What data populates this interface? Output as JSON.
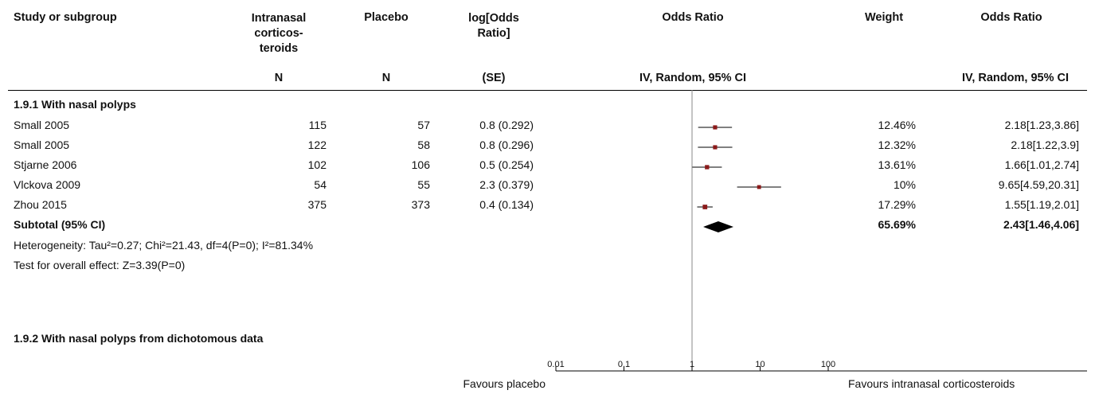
{
  "headers": {
    "study": "Study or subgroup",
    "exp": [
      "Intranasal",
      "corticos-",
      "teroids"
    ],
    "ctrl": "Placebo",
    "logor": [
      "log[Odds",
      "Ratio]"
    ],
    "or_plot": "Odds Ratio",
    "weight": "Weight",
    "or_ci": "Odds Ratio",
    "sub_exp": "N",
    "sub_ctrl": "N",
    "sub_logor": "(SE)",
    "sub_plot": "IV, Random, 95% CI",
    "sub_ci": "IV, Random, 95% CI"
  },
  "group1": {
    "title": "1.9.1 With nasal polyps",
    "studies": [
      {
        "name": "Small 2005",
        "n_exp": "115",
        "n_ctrl": "57",
        "logor": "0.8 (0.292)",
        "weight": "12.46%",
        "ci": "2.18[1.23,3.86]"
      },
      {
        "name": "Small 2005",
        "n_exp": "122",
        "n_ctrl": "58",
        "logor": "0.8 (0.296)",
        "weight": "12.32%",
        "ci": "2.18[1.22,3.9]"
      },
      {
        "name": "Stjarne 2006",
        "n_exp": "102",
        "n_ctrl": "106",
        "logor": "0.5 (0.254)",
        "weight": "13.61%",
        "ci": "1.66[1.01,2.74]"
      },
      {
        "name": "Vlckova 2009",
        "n_exp": "54",
        "n_ctrl": "55",
        "logor": "2.3 (0.379)",
        "weight": "10%",
        "ci": "9.65[4.59,20.31]"
      },
      {
        "name": "Zhou 2015",
        "n_exp": "375",
        "n_ctrl": "373",
        "logor": "0.4 (0.134)",
        "weight": "17.29%",
        "ci": "1.55[1.19,2.01]"
      }
    ],
    "subtotal": {
      "label": "Subtotal (95% CI)",
      "weight": "65.69%",
      "ci": "2.43[1.46,4.06]"
    },
    "heterogeneity": "Heterogeneity: Tau²=0.27; Chi²=21.43, df=4(P=0); I²=81.34%",
    "overall": "Test for overall effect: Z=3.39(P=0)"
  },
  "group2": {
    "title": "1.9.2 With nasal polyps from dichotomous data"
  },
  "footer": {
    "favours_left": "Favours placebo",
    "favours_right": "Favours intranasal corticosteroids"
  },
  "chart_data": {
    "type": "forest",
    "scale": "log",
    "xlim": [
      0.01,
      100
    ],
    "reference": 1,
    "ticks": [
      "0.01",
      "0.1",
      "1",
      "10",
      "100"
    ],
    "marker_color": "#8b1a1a",
    "studies": [
      {
        "or": 2.18,
        "lo": 1.23,
        "hi": 3.86,
        "weight": 12.46
      },
      {
        "or": 2.18,
        "lo": 1.22,
        "hi": 3.9,
        "weight": 12.32
      },
      {
        "or": 1.66,
        "lo": 1.01,
        "hi": 2.74,
        "weight": 13.61
      },
      {
        "or": 9.65,
        "lo": 4.59,
        "hi": 20.31,
        "weight": 10
      },
      {
        "or": 1.55,
        "lo": 1.19,
        "hi": 2.01,
        "weight": 17.29
      }
    ],
    "subtotal": {
      "or": 2.43,
      "lo": 1.46,
      "hi": 4.06
    }
  }
}
